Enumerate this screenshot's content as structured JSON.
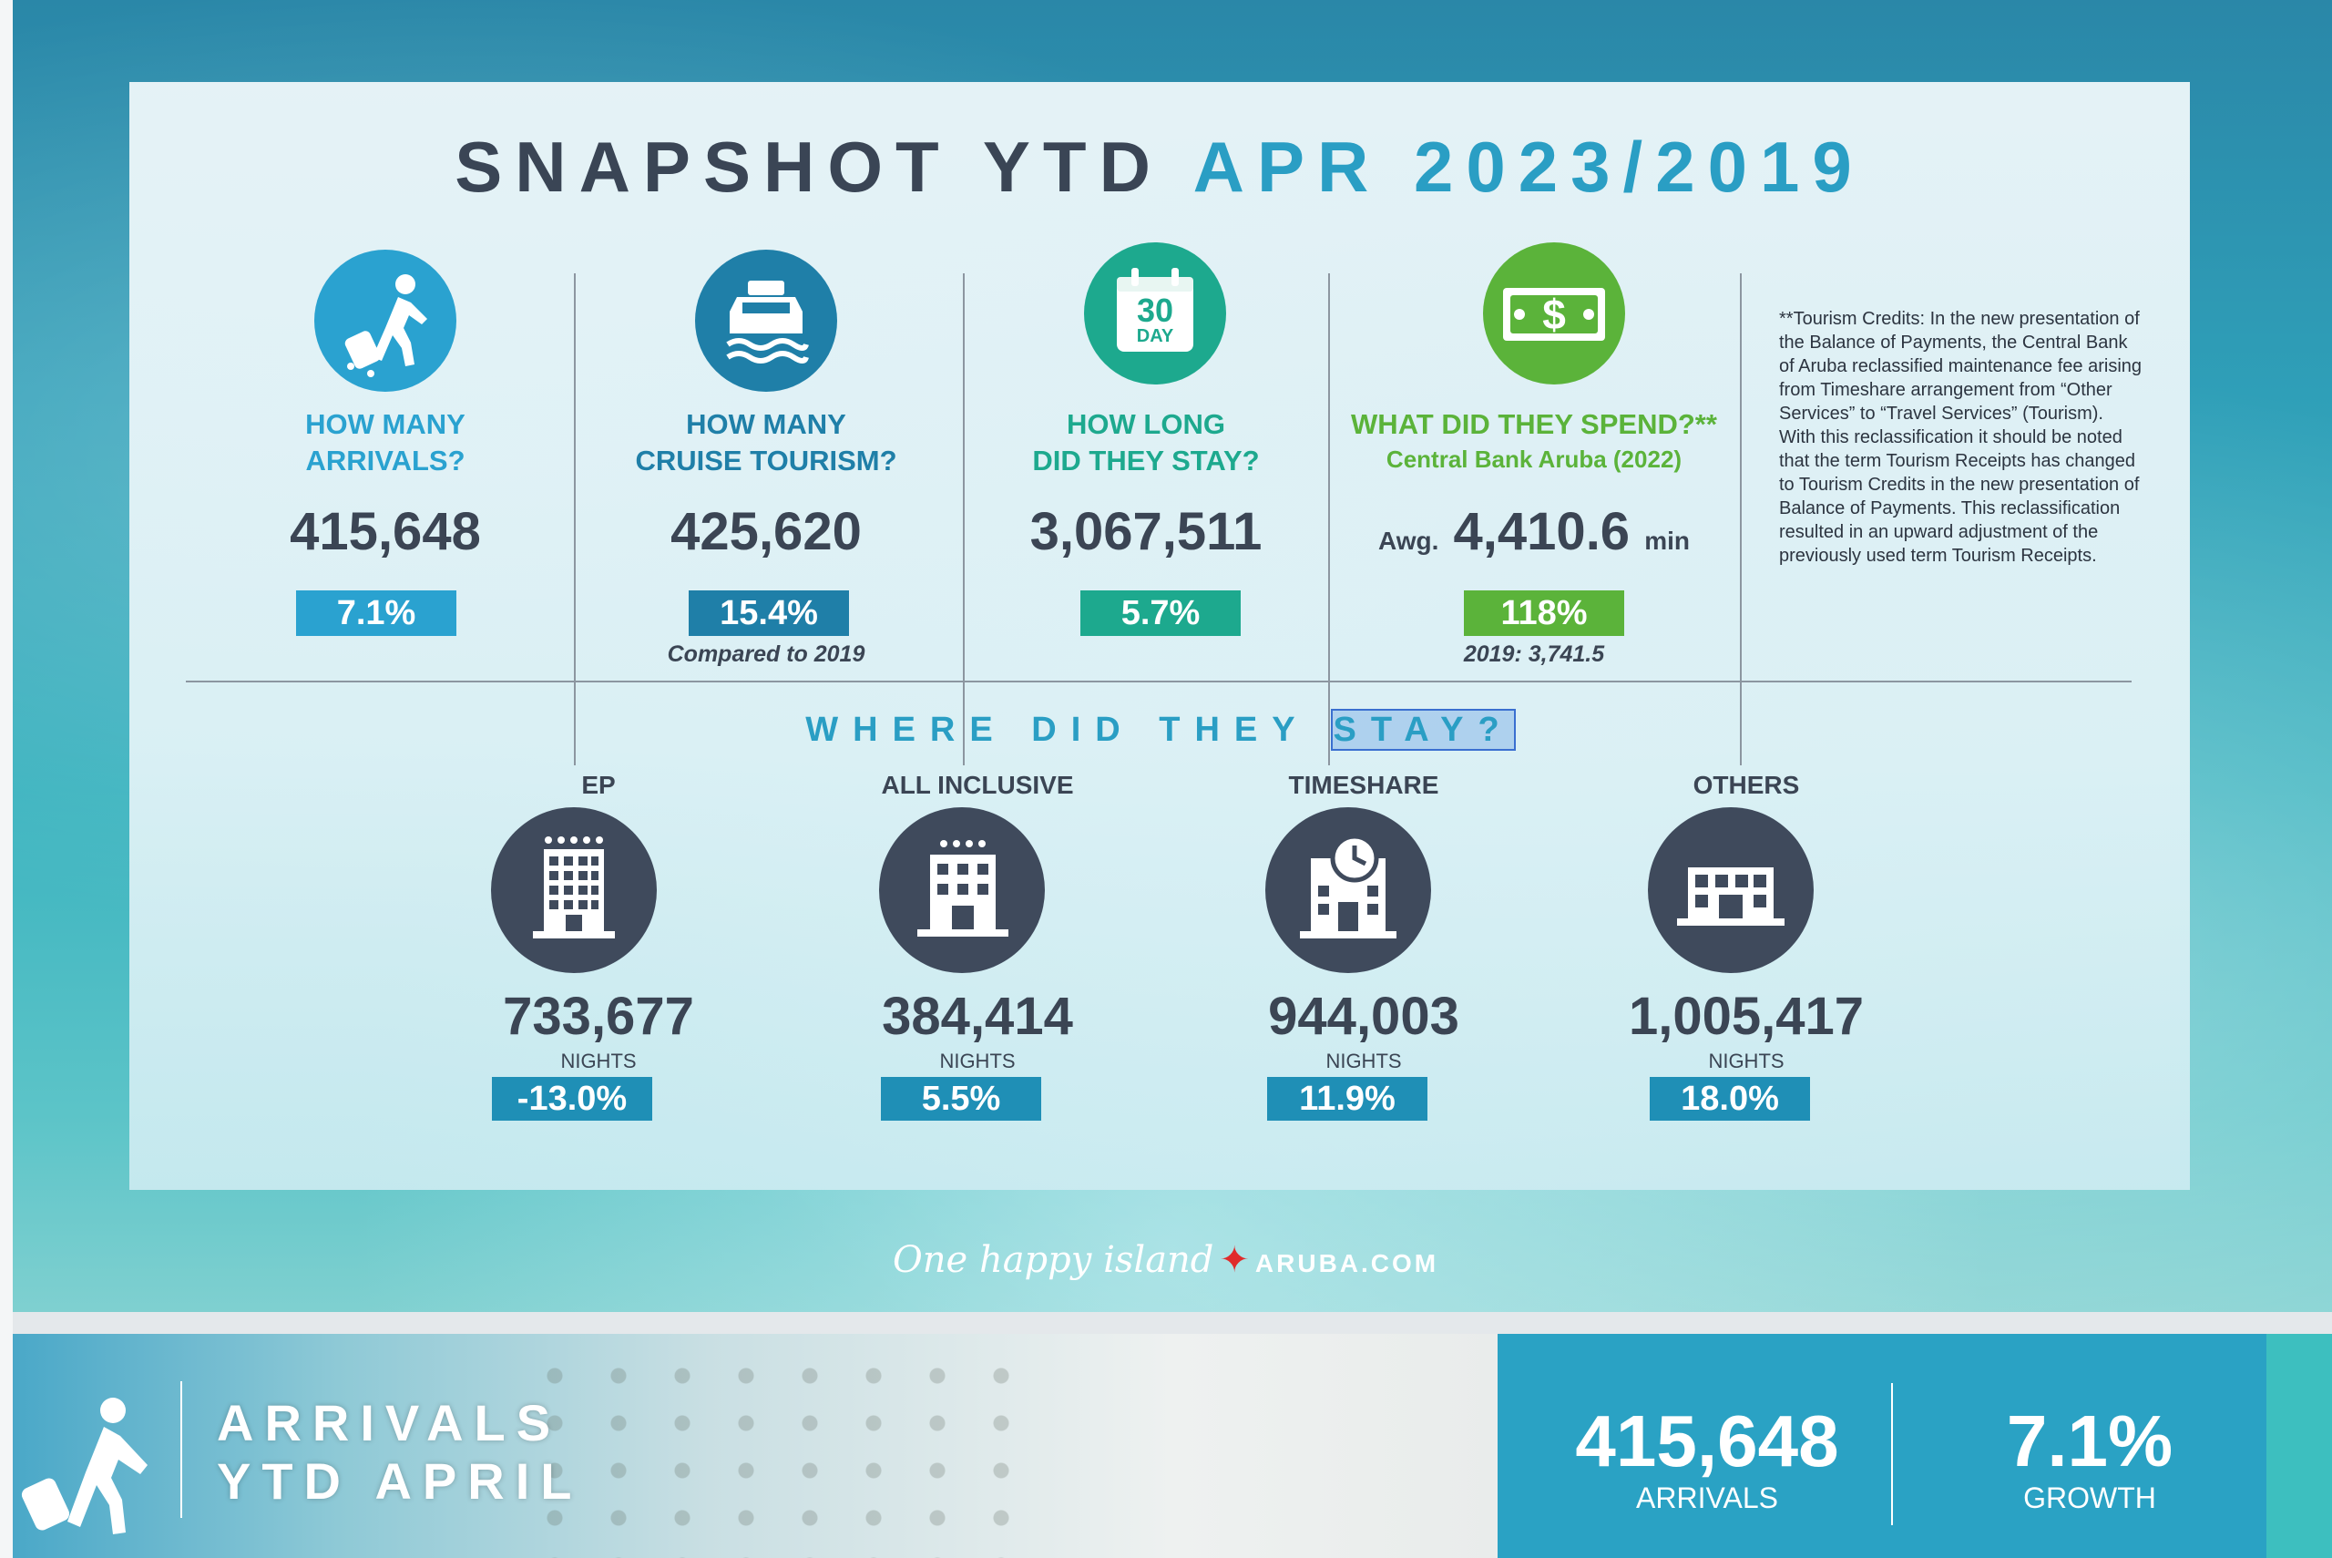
{
  "title": {
    "main": "SNAPSHOT YTD ",
    "accent": "APR 2023/2019"
  },
  "metrics": [
    {
      "question_line1": "HOW MANY",
      "question_line2": "ARRIVALS?",
      "value": "415,648",
      "change": "7.1%",
      "color": "#2aa2d0"
    },
    {
      "question_line1": "HOW MANY",
      "question_line2": "CRUISE TOURISM?",
      "value": "425,620",
      "change": "15.4%",
      "note": "Compared to 2019",
      "color": "#1f7fa8"
    },
    {
      "question_line1": "HOW LONG",
      "question_line2": "DID THEY STAY?",
      "value": "3,067,511",
      "change": "5.7%",
      "color": "#1da98e",
      "calendar_number": "30",
      "calendar_word": "DAY"
    },
    {
      "question_line1": "WHAT DID THEY SPEND?**",
      "question_line2": "Central Bank Aruba (2022)",
      "value_prefix": "Awg.",
      "value": "4,410.6",
      "value_suffix": "min",
      "change": "118%",
      "note": "2019: 3,741.5",
      "color": "#5bb33a",
      "dollar": "$"
    }
  ],
  "footnote": "**Tourism Credits: In the new presentation of the Balance of Payments, the Central Bank of Aruba reclassified maintenance fee arising from Timeshare arrangement from “Other Services” to “Travel Services” (Tourism). With this reclassification it should be noted that the term Tourism Receipts has changed to Tourism Credits in the new presentation of Balance of Payments. This reclassification resulted in an upward adjustment of the previously used term Tourism Receipts.",
  "where": {
    "text": "WHERE DID THEY ",
    "highlighted": "STAY?"
  },
  "stays": [
    {
      "label": "EP",
      "value": "733,677",
      "unit": "NIGHTS",
      "change": "-13.0%"
    },
    {
      "label": "ALL INCLUSIVE",
      "value": "384,414",
      "unit": "NIGHTS",
      "change": "5.5%"
    },
    {
      "label": "TIMESHARE",
      "value": "944,003",
      "unit": "NIGHTS",
      "change": "11.9%"
    },
    {
      "label": "OTHERS",
      "value": "1,005,417",
      "unit": "NIGHTS",
      "change": "18.0%"
    }
  ],
  "logo": {
    "script": "One happy island",
    "domain": "ARUBA.COM"
  },
  "bottom": {
    "title_line1": "ARRIVALS",
    "title_line2": "YTD APRIL",
    "arrivals_value": "415,648",
    "arrivals_label": "ARRIVALS",
    "growth_value": "7.1%",
    "growth_label": "GROWTH"
  },
  "icons": [
    "traveler-icon",
    "ship-icon",
    "calendar-icon",
    "dollar-bill-icon",
    "hotel-ep-icon",
    "hotel-all-inclusive-icon",
    "timeshare-clock-icon",
    "others-building-icon"
  ]
}
